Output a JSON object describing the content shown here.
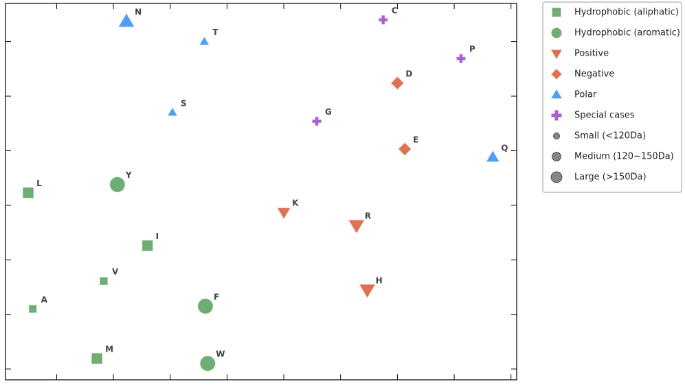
{
  "chart_data": {
    "type": "scatter",
    "xlim": [
      0.1,
      9.1
    ],
    "ylim": [
      -0.2,
      6.7
    ],
    "xticks": [
      1,
      2,
      3,
      4,
      5,
      6,
      7,
      8,
      9
    ],
    "yticks": [
      0,
      1,
      2,
      3,
      4,
      5,
      6
    ],
    "legend": "outside-right",
    "series": [
      {
        "name": "Hydrophobic (aliphatic)",
        "color": "#5fa463",
        "marker": "square",
        "labels": [
          "L",
          "I",
          "V",
          "A",
          "M"
        ],
        "x": [
          0.5,
          2.6,
          1.83,
          0.58,
          1.71
        ],
        "y": [
          3.23,
          2.26,
          1.61,
          1.1,
          0.19
        ],
        "sizes": [
          "medium",
          "medium",
          "small",
          "small",
          "medium"
        ]
      },
      {
        "name": "Hydrophobic (aromatic)",
        "color": "#5fa463",
        "marker": "circle",
        "labels": [
          "Y",
          "F",
          "W"
        ],
        "x": [
          2.07,
          3.62,
          3.66
        ],
        "y": [
          3.38,
          1.15,
          0.1
        ],
        "sizes": [
          "large",
          "large",
          "large"
        ]
      },
      {
        "name": "Positive",
        "color": "#d9643f",
        "marker": "triangle-down",
        "labels": [
          "K",
          "R",
          "H"
        ],
        "x": [
          5.0,
          6.28,
          6.47
        ],
        "y": [
          2.87,
          2.63,
          1.45
        ],
        "sizes": [
          "medium",
          "large",
          "large"
        ]
      },
      {
        "name": "Negative",
        "color": "#d9643f",
        "marker": "diamond",
        "labels": [
          "D",
          "E"
        ],
        "x": [
          7.0,
          7.13
        ],
        "y": [
          5.24,
          4.03
        ],
        "sizes": [
          "medium",
          "medium"
        ]
      },
      {
        "name": "Polar",
        "color": "#3e95ee",
        "marker": "triangle-up",
        "labels": [
          "N",
          "T",
          "S",
          "Q"
        ],
        "x": [
          2.23,
          3.6,
          3.04,
          8.68
        ],
        "y": [
          6.37,
          6.0,
          4.7,
          3.88
        ],
        "sizes": [
          "large",
          "small",
          "small",
          "medium"
        ]
      },
      {
        "name": "Special cases",
        "color": "#a64fc9",
        "marker": "plus",
        "labels": [
          "C",
          "P",
          "G"
        ],
        "x": [
          6.75,
          8.12,
          5.58
        ],
        "y": [
          6.4,
          5.69,
          4.54
        ],
        "sizes": [
          "small",
          "small",
          "small"
        ]
      }
    ],
    "size_legend": [
      {
        "label": "Small (<120Da)",
        "size": "small"
      },
      {
        "label": "Medium (120~150Da)",
        "size": "medium"
      },
      {
        "label": "Large (>150Da)",
        "size": "large"
      }
    ]
  }
}
